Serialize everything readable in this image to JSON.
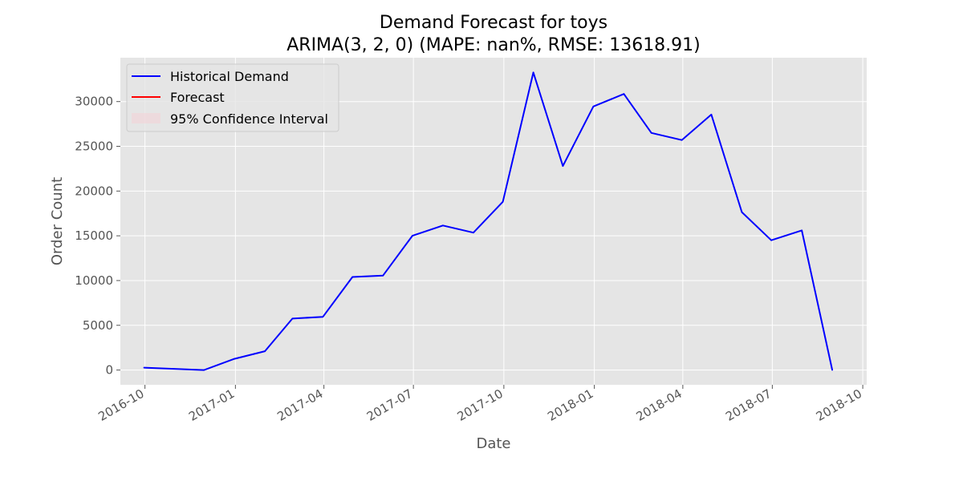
{
  "chart_data": {
    "type": "line",
    "title": "Demand Forecast for toys",
    "subtitle": "ARIMA(3, 2, 0) (MAPE: nan%, RMSE: 13618.91)",
    "xlabel": "Date",
    "ylabel": "Order Count",
    "xlim": [
      "2016-09-06",
      "2018-10-05"
    ],
    "ylim": [
      -1650,
      34900
    ],
    "x_ticks": [
      "2016-10",
      "2017-01",
      "2017-04",
      "2017-07",
      "2017-10",
      "2018-01",
      "2018-04",
      "2018-07",
      "2018-10"
    ],
    "y_ticks": [
      0,
      5000,
      10000,
      15000,
      20000,
      25000,
      30000
    ],
    "grid": true,
    "legend": {
      "position": "top-left",
      "entries": [
        {
          "label": "Historical Demand",
          "color": "#0000ff",
          "kind": "line"
        },
        {
          "label": "Forecast",
          "color": "#ff0000",
          "kind": "line"
        },
        {
          "label": "95% Confidence Interval",
          "color": "#ffc0cb",
          "kind": "patch"
        }
      ]
    },
    "series": [
      {
        "name": "Historical Demand",
        "color": "#0000ff",
        "points": [
          {
            "x": "2016-09-30",
            "y": 270
          },
          {
            "x": "2016-11-30",
            "y": 0
          },
          {
            "x": "2016-12-31",
            "y": 1250
          },
          {
            "x": "2017-01-31",
            "y": 2100
          },
          {
            "x": "2017-02-28",
            "y": 5750
          },
          {
            "x": "2017-03-31",
            "y": 5950
          },
          {
            "x": "2017-04-30",
            "y": 10400
          },
          {
            "x": "2017-05-31",
            "y": 10550
          },
          {
            "x": "2017-06-30",
            "y": 15000
          },
          {
            "x": "2017-07-31",
            "y": 16150
          },
          {
            "x": "2017-08-31",
            "y": 15350
          },
          {
            "x": "2017-09-30",
            "y": 18800
          },
          {
            "x": "2017-10-31",
            "y": 33250
          },
          {
            "x": "2017-11-30",
            "y": 22800
          },
          {
            "x": "2017-12-31",
            "y": 29450
          },
          {
            "x": "2018-01-31",
            "y": 30850
          },
          {
            "x": "2018-02-28",
            "y": 26500
          },
          {
            "x": "2018-03-31",
            "y": 25700
          },
          {
            "x": "2018-04-30",
            "y": 28550
          },
          {
            "x": "2018-05-31",
            "y": 17650
          },
          {
            "x": "2018-06-30",
            "y": 14500
          },
          {
            "x": "2018-07-31",
            "y": 15600
          },
          {
            "x": "2018-08-31",
            "y": 0
          }
        ]
      }
    ]
  }
}
